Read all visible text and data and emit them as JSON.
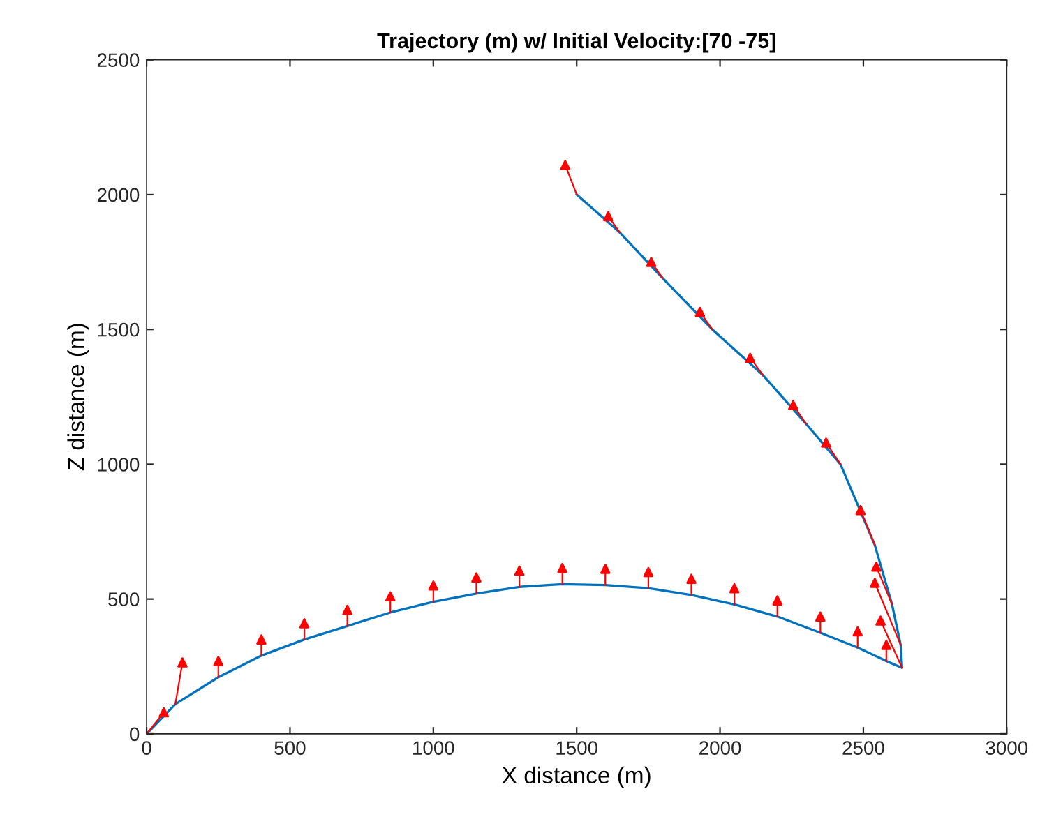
{
  "chart_data": {
    "type": "line",
    "title": "Trajectory (m) w/ Initial Velocity:[70 -75]",
    "xlabel": "X distance (m)",
    "ylabel": "Z distance (m)",
    "xlim": [
      0,
      3000
    ],
    "xticks": [
      0,
      500,
      1000,
      1500,
      2000,
      2500,
      3000
    ],
    "ylim": [
      0,
      2500
    ],
    "yticks": [
      0,
      500,
      1000,
      1500,
      2000,
      2500
    ],
    "grid": false,
    "legend": false,
    "series": [
      {
        "color": "#0072bd",
        "x": [
          0,
          100,
          250,
          400,
          550,
          700,
          850,
          1000,
          1150,
          1300,
          1450,
          1600,
          1750,
          1900,
          2050,
          2200,
          2350,
          2480,
          2580,
          2635,
          2630,
          2600,
          2540,
          2420,
          2300,
          2150,
          1973,
          1800,
          1650,
          1500
        ],
        "values": [
          0,
          110,
          210,
          290,
          350,
          400,
          450,
          490,
          520,
          545,
          555,
          552,
          540,
          515,
          480,
          435,
          375,
          320,
          270,
          245,
          330,
          480,
          700,
          1000,
          1150,
          1330,
          1500,
          1690,
          1860,
          2000
        ]
      },
      {
        "type": "scatter",
        "marker": "triangle",
        "color": "#ff0000",
        "x": [
          60,
          125,
          250,
          400,
          550,
          700,
          850,
          1000,
          1150,
          1300,
          1450,
          1600,
          1750,
          1900,
          2050,
          2200,
          2350,
          2480,
          2580,
          2560,
          2540,
          2545,
          2490,
          2370,
          2255,
          2105,
          1930,
          1760,
          1610,
          1460
        ],
        "values": [
          80,
          265,
          270,
          350,
          410,
          460,
          510,
          550,
          580,
          605,
          615,
          612,
          600,
          575,
          540,
          495,
          435,
          380,
          330,
          420,
          560,
          620,
          830,
          1080,
          1220,
          1395,
          1565,
          1750,
          1920,
          2110
        ]
      }
    ]
  }
}
